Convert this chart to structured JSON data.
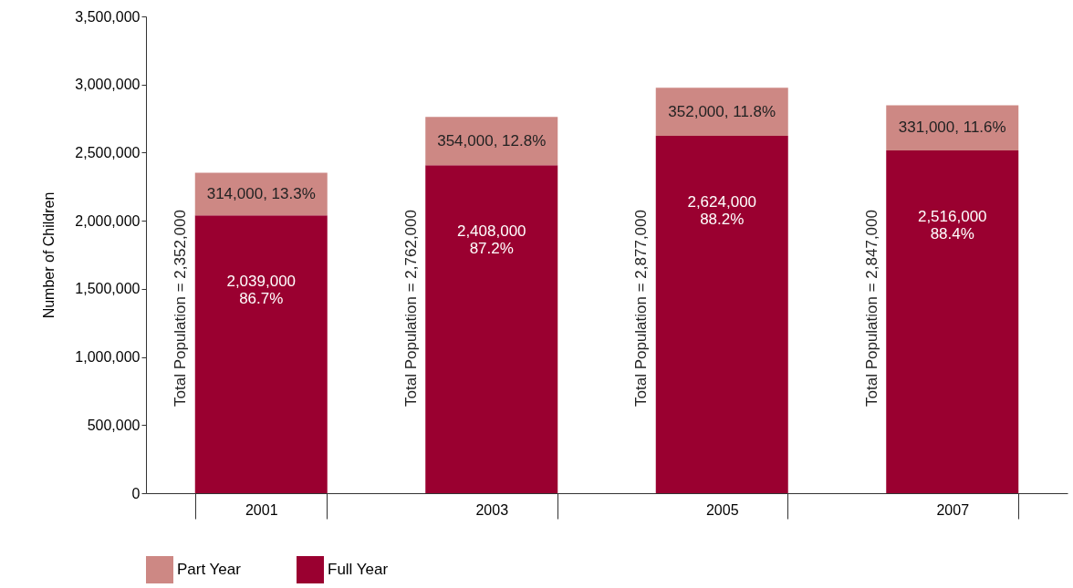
{
  "chart_data": {
    "type": "bar",
    "stacked": true,
    "ylabel": "Number of Children",
    "categories": [
      "2001",
      "2003",
      "2005",
      "2007"
    ],
    "series": [
      {
        "name": "Full Year",
        "color": "#9a0030",
        "values": [
          2039000,
          2408000,
          2624000,
          2516000
        ],
        "value_labels": [
          "2,039,000\n86.7%",
          "2,408,000\n87.2%",
          "2,624,000\n88.2%",
          "2,516,000\n88.4%"
        ]
      },
      {
        "name": "Part Year",
        "color": "#cd8884",
        "values": [
          314000,
          354000,
          352000,
          331000
        ],
        "value_labels": [
          "314,000, 13.3%",
          "354,000, 12.8%",
          "352,000, 11.8%",
          "331,000, 11.6%"
        ]
      }
    ],
    "ylim": [
      0,
      3500000
    ],
    "yticks": [
      0,
      {
        "value": 500000,
        "label": "500,000"
      },
      {
        "value": 1000000,
        "label": "1,000,000"
      },
      {
        "value": 1500000,
        "label": "1,500,000"
      },
      {
        "value": 2000000,
        "label": "2,000,000"
      },
      {
        "value": 2500000,
        "label": "2,500,000"
      },
      {
        "value": 3000000,
        "label": "3,000,000"
      },
      {
        "value": 3500000,
        "label": "3,500,000"
      }
    ],
    "annotations": [
      "Total Population = 2,352,000",
      "Total Population = 2,762,000",
      "Total Population = 2,877,000",
      "Total Population = 2,847,000"
    ],
    "legend": "bottom",
    "grid": false
  }
}
